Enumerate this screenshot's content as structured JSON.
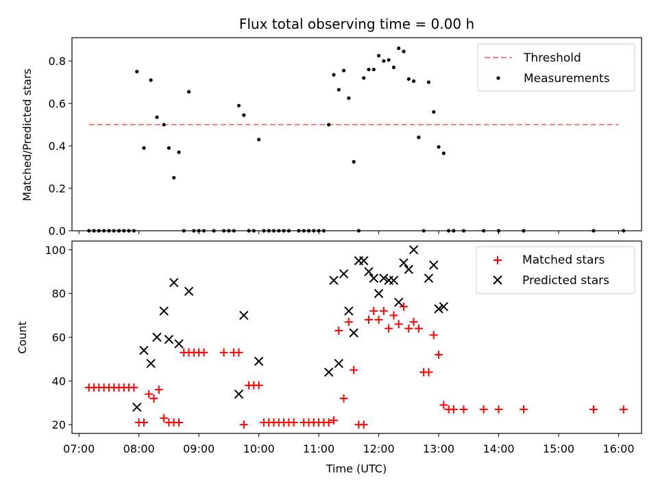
{
  "chart_data": [
    {
      "type": "scatter",
      "title": "Flux total observing time = 0.00 h",
      "ylabel": "Matched/Predicted stars",
      "xlabel": "",
      "xlim": [
        "06:53",
        "16:23"
      ],
      "ylim": [
        0,
        0.91
      ],
      "yticks": [
        0.0,
        0.2,
        0.4,
        0.6,
        0.8
      ],
      "ytick_labels": [
        "0.0",
        "0.2",
        "0.4",
        "0.6",
        "0.8"
      ],
      "legend": {
        "position": "top-right",
        "entries": [
          "Threshold",
          "Measurements"
        ]
      },
      "colors": {
        "threshold": "#ff7f7f",
        "measurements": "#000000"
      },
      "threshold": {
        "name": "Threshold",
        "x": [
          "07:10",
          "16:00"
        ],
        "y": 0.5
      },
      "series": [
        {
          "name": "Measurements",
          "points": [
            [
              "07:10",
              0.0
            ],
            [
              "07:15",
              0.0
            ],
            [
              "07:20",
              0.0
            ],
            [
              "07:25",
              0.0
            ],
            [
              "07:30",
              0.0
            ],
            [
              "07:35",
              0.0
            ],
            [
              "07:40",
              0.0
            ],
            [
              "07:45",
              0.0
            ],
            [
              "07:50",
              0.0
            ],
            [
              "07:55",
              0.0
            ],
            [
              "07:58",
              0.75
            ],
            [
              "08:05",
              0.39
            ],
            [
              "08:12",
              0.71
            ],
            [
              "08:18",
              0.535
            ],
            [
              "08:25",
              0.5
            ],
            [
              "08:30",
              0.39
            ],
            [
              "08:35",
              0.25
            ],
            [
              "08:40",
              0.37
            ],
            [
              "08:45",
              0.0
            ],
            [
              "08:50",
              0.655
            ],
            [
              "08:55",
              0.0
            ],
            [
              "09:00",
              0.0
            ],
            [
              "09:05",
              0.0
            ],
            [
              "09:15",
              0.0
            ],
            [
              "09:25",
              0.0
            ],
            [
              "09:30",
              0.0
            ],
            [
              "09:35",
              0.0
            ],
            [
              "09:40",
              0.59
            ],
            [
              "09:45",
              0.545
            ],
            [
              "09:50",
              0.0
            ],
            [
              "09:55",
              0.0
            ],
            [
              "10:00",
              0.43
            ],
            [
              "10:05",
              0.0
            ],
            [
              "10:10",
              0.0
            ],
            [
              "10:15",
              0.0
            ],
            [
              "10:20",
              0.0
            ],
            [
              "10:25",
              0.0
            ],
            [
              "10:30",
              0.0
            ],
            [
              "10:40",
              0.0
            ],
            [
              "10:45",
              0.0
            ],
            [
              "10:50",
              0.0
            ],
            [
              "10:55",
              0.0
            ],
            [
              "11:00",
              0.0
            ],
            [
              "11:05",
              0.0
            ],
            [
              "11:10",
              0.5
            ],
            [
              "11:15",
              0.735
            ],
            [
              "11:20",
              0.665
            ],
            [
              "11:25",
              0.755
            ],
            [
              "11:30",
              0.625
            ],
            [
              "11:35",
              0.325
            ],
            [
              "11:40",
              0.0
            ],
            [
              "11:45",
              0.72
            ],
            [
              "11:50",
              0.76
            ],
            [
              "11:55",
              0.76
            ],
            [
              "12:00",
              0.825
            ],
            [
              "12:05",
              0.8
            ],
            [
              "12:10",
              0.805
            ],
            [
              "12:15",
              0.77
            ],
            [
              "12:20",
              0.86
            ],
            [
              "12:25",
              0.845
            ],
            [
              "12:30",
              0.715
            ],
            [
              "12:35",
              0.705
            ],
            [
              "12:40",
              0.44
            ],
            [
              "12:45",
              0.0
            ],
            [
              "12:50",
              0.7
            ],
            [
              "12:55",
              0.56
            ],
            [
              "13:00",
              0.395
            ],
            [
              "13:05",
              0.365
            ],
            [
              "13:10",
              0.0
            ],
            [
              "13:15",
              0.0
            ],
            [
              "13:25",
              0.0
            ],
            [
              "13:45",
              0.0
            ],
            [
              "14:00",
              0.0
            ],
            [
              "14:25",
              0.0
            ],
            [
              "15:35",
              0.0
            ],
            [
              "16:05",
              0.0
            ]
          ]
        }
      ]
    },
    {
      "type": "scatter",
      "title": "",
      "ylabel": "Count",
      "xlabel": "Time (UTC)",
      "xlim": [
        "06:53",
        "16:23"
      ],
      "ylim": [
        16,
        104
      ],
      "yticks": [
        20,
        40,
        60,
        80,
        100
      ],
      "ytick_labels": [
        "20",
        "40",
        "60",
        "80",
        "100"
      ],
      "xticks": [
        "07:00",
        "08:00",
        "09:00",
        "10:00",
        "11:00",
        "12:00",
        "13:00",
        "14:00",
        "15:00",
        "16:00"
      ],
      "xtick_labels": [
        "07:00",
        "08:00",
        "09:00",
        "10:00",
        "11:00",
        "12:00",
        "13:00",
        "14:00",
        "15:00",
        "16:00"
      ],
      "legend": {
        "position": "top-right",
        "entries": [
          "Matched stars",
          "Predicted stars"
        ]
      },
      "colors": {
        "matched": "#ff0000",
        "predicted": "#000000"
      },
      "series": [
        {
          "name": "Matched stars",
          "marker": "plus",
          "points": [
            [
              "07:10",
              37
            ],
            [
              "07:15",
              37
            ],
            [
              "07:20",
              37
            ],
            [
              "07:25",
              37
            ],
            [
              "07:30",
              37
            ],
            [
              "07:35",
              37
            ],
            [
              "07:40",
              37
            ],
            [
              "07:45",
              37
            ],
            [
              "07:50",
              37
            ],
            [
              "07:55",
              37
            ],
            [
              "08:00",
              21
            ],
            [
              "08:05",
              21
            ],
            [
              "08:10",
              34
            ],
            [
              "08:15",
              32
            ],
            [
              "08:20",
              36
            ],
            [
              "08:25",
              23
            ],
            [
              "08:30",
              21
            ],
            [
              "08:35",
              21
            ],
            [
              "08:40",
              21
            ],
            [
              "08:45",
              53
            ],
            [
              "08:50",
              53
            ],
            [
              "08:55",
              53
            ],
            [
              "09:00",
              53
            ],
            [
              "09:05",
              53
            ],
            [
              "09:25",
              53
            ],
            [
              "09:35",
              53
            ],
            [
              "09:40",
              53
            ],
            [
              "09:45",
              20
            ],
            [
              "09:50",
              38
            ],
            [
              "09:55",
              38
            ],
            [
              "10:00",
              38
            ],
            [
              "10:05",
              21
            ],
            [
              "10:10",
              21
            ],
            [
              "10:15",
              21
            ],
            [
              "10:20",
              21
            ],
            [
              "10:25",
              21
            ],
            [
              "10:30",
              21
            ],
            [
              "10:35",
              21
            ],
            [
              "10:45",
              21
            ],
            [
              "10:50",
              21
            ],
            [
              "10:55",
              21
            ],
            [
              "11:00",
              21
            ],
            [
              "11:05",
              21
            ],
            [
              "11:10",
              21
            ],
            [
              "11:15",
              22
            ],
            [
              "11:20",
              63
            ],
            [
              "11:25",
              32
            ],
            [
              "11:30",
              67
            ],
            [
              "11:35",
              45
            ],
            [
              "11:40",
              20
            ],
            [
              "11:45",
              20
            ],
            [
              "11:50",
              68
            ],
            [
              "11:55",
              72
            ],
            [
              "12:00",
              68
            ],
            [
              "12:05",
              72
            ],
            [
              "12:10",
              64
            ],
            [
              "12:15",
              70
            ],
            [
              "12:20",
              66
            ],
            [
              "12:25",
              74
            ],
            [
              "12:30",
              64
            ],
            [
              "12:35",
              67
            ],
            [
              "12:40",
              64
            ],
            [
              "12:45",
              44
            ],
            [
              "12:50",
              44
            ],
            [
              "12:55",
              61
            ],
            [
              "13:00",
              52
            ],
            [
              "13:05",
              29
            ],
            [
              "13:10",
              27
            ],
            [
              "13:15",
              27
            ],
            [
              "13:25",
              27
            ],
            [
              "13:45",
              27
            ],
            [
              "14:00",
              27
            ],
            [
              "14:25",
              27
            ],
            [
              "15:35",
              27
            ],
            [
              "16:05",
              27
            ]
          ]
        },
        {
          "name": "Predicted stars",
          "marker": "x",
          "points": [
            [
              "07:58",
              28
            ],
            [
              "08:05",
              54
            ],
            [
              "08:12",
              48
            ],
            [
              "08:18",
              60
            ],
            [
              "08:25",
              72
            ],
            [
              "08:30",
              59
            ],
            [
              "08:35",
              85
            ],
            [
              "08:40",
              57
            ],
            [
              "08:50",
              81
            ],
            [
              "09:40",
              34
            ],
            [
              "09:45",
              70
            ],
            [
              "10:00",
              49
            ],
            [
              "11:10",
              44
            ],
            [
              "11:15",
              86
            ],
            [
              "11:20",
              48
            ],
            [
              "11:25",
              89
            ],
            [
              "11:30",
              72
            ],
            [
              "11:35",
              62
            ],
            [
              "11:40",
              95
            ],
            [
              "11:45",
              95
            ],
            [
              "11:50",
              90
            ],
            [
              "11:55",
              87
            ],
            [
              "12:00",
              80
            ],
            [
              "12:05",
              87
            ],
            [
              "12:10",
              86
            ],
            [
              "12:15",
              86
            ],
            [
              "12:20",
              76
            ],
            [
              "12:25",
              94
            ],
            [
              "12:30",
              91
            ],
            [
              "12:35",
              100
            ],
            [
              "12:50",
              87
            ],
            [
              "12:55",
              93
            ],
            [
              "13:00",
              73
            ],
            [
              "13:05",
              74
            ]
          ]
        }
      ]
    }
  ]
}
